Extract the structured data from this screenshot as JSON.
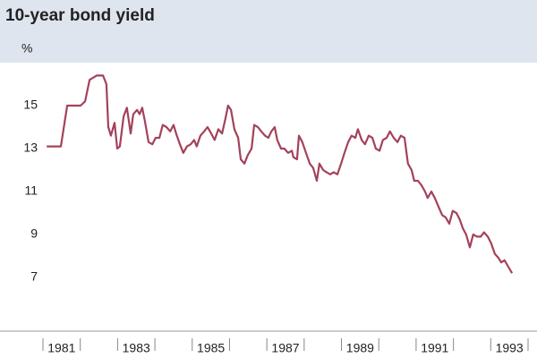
{
  "chart_data": {
    "type": "line",
    "title": "10-year bond yield",
    "y_label": "%",
    "xlim": [
      1981,
      1994
    ],
    "ylim": [
      4.5,
      17
    ],
    "yticks": [
      7,
      9,
      11,
      13,
      15
    ],
    "xticks": [
      {
        "value": 1981.5,
        "label": "1981"
      },
      {
        "value": 1983.5,
        "label": "1983"
      },
      {
        "value": 1985.5,
        "label": "1985"
      },
      {
        "value": 1987.5,
        "label": "1987"
      },
      {
        "value": 1989.5,
        "label": "1989"
      },
      {
        "value": 1991.5,
        "label": "1991"
      },
      {
        "value": 1993.5,
        "label": "1993"
      }
    ],
    "xminor_ticks": [
      1981,
      1982,
      1983,
      1984,
      1985,
      1986,
      1987,
      1988,
      1989,
      1990,
      1991,
      1992,
      1993,
      1994
    ],
    "x": [
      1981.1,
      1981.48,
      1981.65,
      1982.01,
      1982.13,
      1982.25,
      1982.44,
      1982.61,
      1982.7,
      1982.75,
      1982.82,
      1982.92,
      1982.99,
      1983.06,
      1983.16,
      1983.25,
      1983.35,
      1983.42,
      1983.52,
      1983.59,
      1983.66,
      1983.73,
      1983.83,
      1983.93,
      1984.02,
      1984.12,
      1984.21,
      1984.31,
      1984.41,
      1984.5,
      1984.57,
      1984.67,
      1984.76,
      1984.86,
      1984.96,
      1985.05,
      1985.12,
      1985.22,
      1985.32,
      1985.41,
      1985.51,
      1985.6,
      1985.7,
      1985.8,
      1985.89,
      1985.96,
      1986.04,
      1986.13,
      1986.23,
      1986.3,
      1986.4,
      1986.49,
      1986.59,
      1986.66,
      1986.76,
      1986.85,
      1986.95,
      1987.04,
      1987.12,
      1987.21,
      1987.28,
      1987.38,
      1987.47,
      1987.57,
      1987.67,
      1987.71,
      1987.81,
      1987.86,
      1987.95,
      1988.05,
      1988.15,
      1988.24,
      1988.34,
      1988.41,
      1988.51,
      1988.6,
      1988.7,
      1988.79,
      1988.89,
      1988.99,
      1989.08,
      1989.18,
      1989.27,
      1989.37,
      1989.44,
      1989.54,
      1989.63,
      1989.73,
      1989.83,
      1989.92,
      1990.02,
      1990.11,
      1990.21,
      1990.3,
      1990.4,
      1990.5,
      1990.59,
      1990.69,
      1990.78,
      1990.88,
      1990.95,
      1991.05,
      1991.14,
      1991.24,
      1991.31,
      1991.41,
      1991.5,
      1991.6,
      1991.7,
      1991.79,
      1991.89,
      1991.98,
      1992.08,
      1992.17,
      1992.25,
      1992.34,
      1992.44,
      1992.53,
      1992.63,
      1992.73,
      1992.82,
      1992.92,
      1993.01,
      1993.11,
      1993.21,
      1993.28,
      1993.37,
      1993.47,
      1993.57
    ],
    "series": [
      {
        "color": "#a3425a",
        "values": [
          13.1,
          13.1,
          15.0,
          15.0,
          15.2,
          16.2,
          16.4,
          16.4,
          16.0,
          14.0,
          13.6,
          14.2,
          13.0,
          13.1,
          14.5,
          14.9,
          13.7,
          14.6,
          14.8,
          14.6,
          14.9,
          14.3,
          13.3,
          13.2,
          13.5,
          13.5,
          14.1,
          14.0,
          13.8,
          14.1,
          13.7,
          13.2,
          12.8,
          13.1,
          13.2,
          13.4,
          13.1,
          13.6,
          13.8,
          14.0,
          13.7,
          13.4,
          13.9,
          13.7,
          14.4,
          15.0,
          14.8,
          13.9,
          13.5,
          12.5,
          12.3,
          12.7,
          13.0,
          14.1,
          14.0,
          13.8,
          13.6,
          13.5,
          13.8,
          14.0,
          13.4,
          13.0,
          13.0,
          12.8,
          12.9,
          12.6,
          12.5,
          13.6,
          13.3,
          12.8,
          12.3,
          12.1,
          11.5,
          12.3,
          12.0,
          11.9,
          11.8,
          11.9,
          11.8,
          12.3,
          12.8,
          13.3,
          13.6,
          13.5,
          13.9,
          13.4,
          13.2,
          13.6,
          13.5,
          13.0,
          12.9,
          13.4,
          13.5,
          13.8,
          13.5,
          13.3,
          13.6,
          13.5,
          12.3,
          12.0,
          11.5,
          11.5,
          11.3,
          11.0,
          10.7,
          11.0,
          10.7,
          10.3,
          9.9,
          9.8,
          9.5,
          10.1,
          10.0,
          9.7,
          9.3,
          9.0,
          8.4,
          9.0,
          8.9,
          8.9,
          9.1,
          8.9,
          8.6,
          8.1,
          7.9,
          7.7,
          7.8,
          7.5,
          7.2
        ]
      }
    ]
  }
}
